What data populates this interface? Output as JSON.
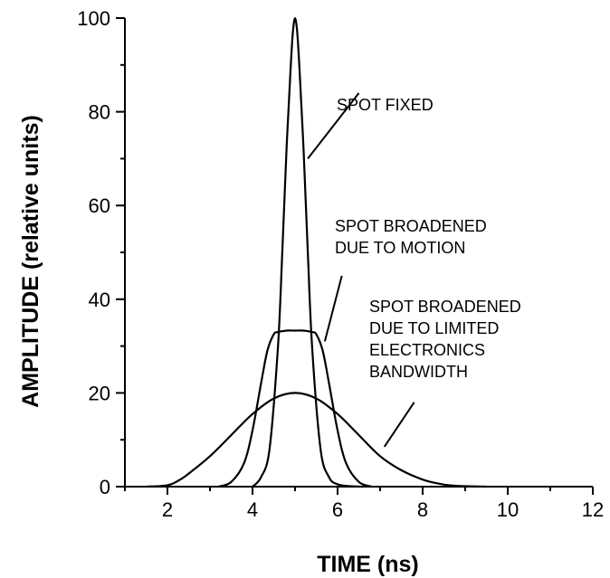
{
  "chart_data": {
    "type": "line",
    "title": "",
    "xlabel": "TIME (ns)",
    "ylabel": "AMPLITUDE (relative units)",
    "xlim": [
      1,
      12
    ],
    "ylim": [
      0,
      100
    ],
    "x_major_ticks": [
      2,
      4,
      6,
      8,
      10,
      12
    ],
    "x_minor_ticks": [
      1,
      3,
      5,
      7,
      9,
      11
    ],
    "y_major_ticks": [
      0,
      20,
      40,
      60,
      80,
      100
    ],
    "y_minor_ticks": [
      10,
      30,
      50,
      70,
      90
    ],
    "grid": false,
    "legend": "none",
    "series": [
      {
        "x": [
          4.0,
          4.2,
          4.4,
          4.6,
          4.7,
          4.8,
          4.9,
          4.95,
          5.0,
          5.05,
          5.1,
          5.2,
          5.3,
          5.4,
          5.6,
          5.8,
          6.0,
          6.3,
          6.6
        ],
        "y": [
          0,
          2,
          8,
          30,
          50,
          72,
          90,
          97,
          100,
          97,
          90,
          72,
          50,
          30,
          8,
          2,
          0.5,
          0.1,
          0
        ]
      },
      {
        "x": [
          3.2,
          3.5,
          3.8,
          4.0,
          4.2,
          4.35,
          4.5,
          4.6,
          4.8,
          5.0,
          5.2,
          5.4,
          5.5,
          5.65,
          5.8,
          6.0,
          6.2,
          6.5,
          6.8
        ],
        "y": [
          0,
          1,
          5,
          12,
          22,
          29,
          32.5,
          33,
          33.3,
          33.3,
          33.3,
          33,
          32.5,
          29,
          22,
          12,
          5,
          1,
          0
        ]
      },
      {
        "x": [
          1.5,
          2.0,
          2.3,
          2.6,
          3.0,
          3.5,
          4.0,
          4.5,
          5.0,
          5.5,
          6.0,
          6.5,
          7.0,
          7.5,
          8.0,
          8.3,
          8.6,
          9.0,
          9.5
        ],
        "y": [
          0,
          0.3,
          1.5,
          3.5,
          6.5,
          11,
          15.5,
          18.8,
          20,
          18.8,
          15.5,
          11,
          6.5,
          3.5,
          1.5,
          0.8,
          0.3,
          0.1,
          0
        ]
      }
    ],
    "annotations": [
      {
        "lines": [
          "SPOT FIXED"
        ],
        "pointer": [
          [
            5.3,
            70
          ],
          [
            6.5,
            84
          ]
        ]
      },
      {
        "lines": [
          "SPOT BROADENED",
          "DUE TO MOTION"
        ],
        "pointer": [
          [
            5.7,
            31
          ],
          [
            6.1,
            45
          ]
        ]
      },
      {
        "lines": [
          "SPOT BROADENED",
          "DUE TO LIMITED",
          "ELECTRONICS",
          "BANDWIDTH"
        ],
        "pointer": [
          [
            7.1,
            8.5
          ],
          [
            7.8,
            18
          ]
        ]
      }
    ]
  }
}
